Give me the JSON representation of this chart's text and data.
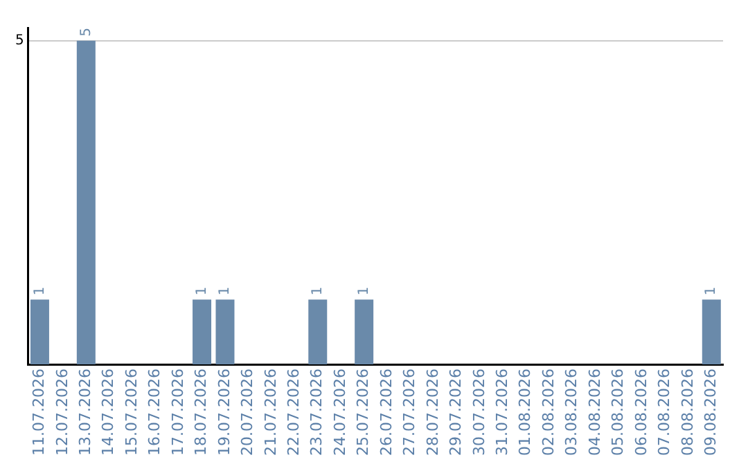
{
  "chart_data": {
    "type": "bar",
    "categories": [
      "11.07.2026",
      "12.07.2026",
      "13.07.2026",
      "14.07.2026",
      "15.07.2026",
      "16.07.2026",
      "17.07.2026",
      "18.07.2026",
      "19.07.2026",
      "20.07.2026",
      "21.07.2026",
      "22.07.2026",
      "23.07.2026",
      "24.07.2026",
      "25.07.2026",
      "26.07.2026",
      "27.07.2026",
      "28.07.2026",
      "29.07.2026",
      "30.07.2026",
      "31.07.2026",
      "01.08.2026",
      "02.08.2026",
      "03.08.2026",
      "04.08.2026",
      "05.08.2026",
      "06.08.2026",
      "07.08.2026",
      "08.08.2026",
      "09.08.2026"
    ],
    "values": [
      1,
      0,
      5,
      0,
      0,
      0,
      0,
      1,
      1,
      0,
      0,
      0,
      1,
      0,
      1,
      0,
      0,
      0,
      0,
      0,
      0,
      0,
      0,
      0,
      0,
      0,
      0,
      0,
      0,
      1
    ],
    "value_labels": [
      "1",
      null,
      "5",
      null,
      null,
      null,
      null,
      "1",
      "1",
      null,
      null,
      null,
      "1",
      null,
      "1",
      null,
      null,
      null,
      null,
      null,
      null,
      null,
      null,
      null,
      null,
      null,
      null,
      null,
      null,
      "1"
    ],
    "color": "#6a8aaa",
    "ylim": [
      0,
      5.2
    ],
    "yticks": [
      5
    ],
    "grid": "y",
    "legend": false
  }
}
